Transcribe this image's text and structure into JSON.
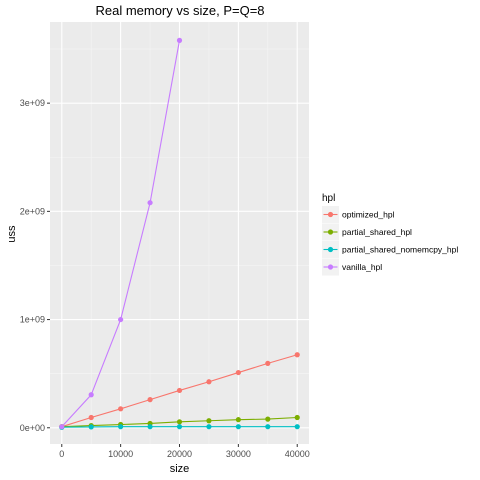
{
  "chart_data": {
    "type": "line",
    "title": "Real memory vs size, P=Q=8",
    "xlabel": "size",
    "ylabel": "uss",
    "xlim": [
      -2000,
      42000
    ],
    "ylim": [
      -150000000,
      3750000000
    ],
    "x_ticks": [
      0,
      10000,
      20000,
      30000,
      40000
    ],
    "x_tick_labels": [
      "0",
      "10000",
      "20000",
      "30000",
      "40000"
    ],
    "y_ticks": [
      0,
      1000000000,
      2000000000,
      3000000000
    ],
    "y_tick_labels": [
      "0e+00",
      "1e+09",
      "2e+09",
      "3e+09"
    ],
    "grid": true,
    "legend": {
      "title": "hpl",
      "position": "right"
    },
    "series": [
      {
        "name": "optimized_hpl",
        "color": "#F8766D",
        "points": [
          [
            0,
            10000000
          ],
          [
            5000,
            95000000
          ],
          [
            10000,
            175000000
          ],
          [
            15000,
            260000000
          ],
          [
            20000,
            345000000
          ],
          [
            25000,
            425000000
          ],
          [
            30000,
            510000000
          ],
          [
            35000,
            595000000
          ],
          [
            40000,
            675000000
          ]
        ]
      },
      {
        "name": "partial_shared_hpl",
        "color": "#7CAE00",
        "points": [
          [
            0,
            10000000
          ],
          [
            5000,
            20000000
          ],
          [
            10000,
            30000000
          ],
          [
            15000,
            40000000
          ],
          [
            20000,
            55000000
          ],
          [
            25000,
            65000000
          ],
          [
            30000,
            75000000
          ],
          [
            35000,
            80000000
          ],
          [
            40000,
            95000000
          ]
        ]
      },
      {
        "name": "partial_shared_nomemcpy_hpl",
        "color": "#00BFC4",
        "points": [
          [
            0,
            5000000
          ],
          [
            5000,
            8000000
          ],
          [
            10000,
            10000000
          ],
          [
            15000,
            10000000
          ],
          [
            20000,
            10000000
          ],
          [
            25000,
            10000000
          ],
          [
            30000,
            10000000
          ],
          [
            35000,
            10000000
          ],
          [
            40000,
            10000000
          ]
        ]
      },
      {
        "name": "vanilla_hpl",
        "color": "#C77CFF",
        "points": [
          [
            0,
            10000000
          ],
          [
            5000,
            305000000
          ],
          [
            10000,
            1000000000
          ],
          [
            15000,
            2080000000
          ],
          [
            20000,
            3580000000
          ]
        ]
      }
    ]
  }
}
